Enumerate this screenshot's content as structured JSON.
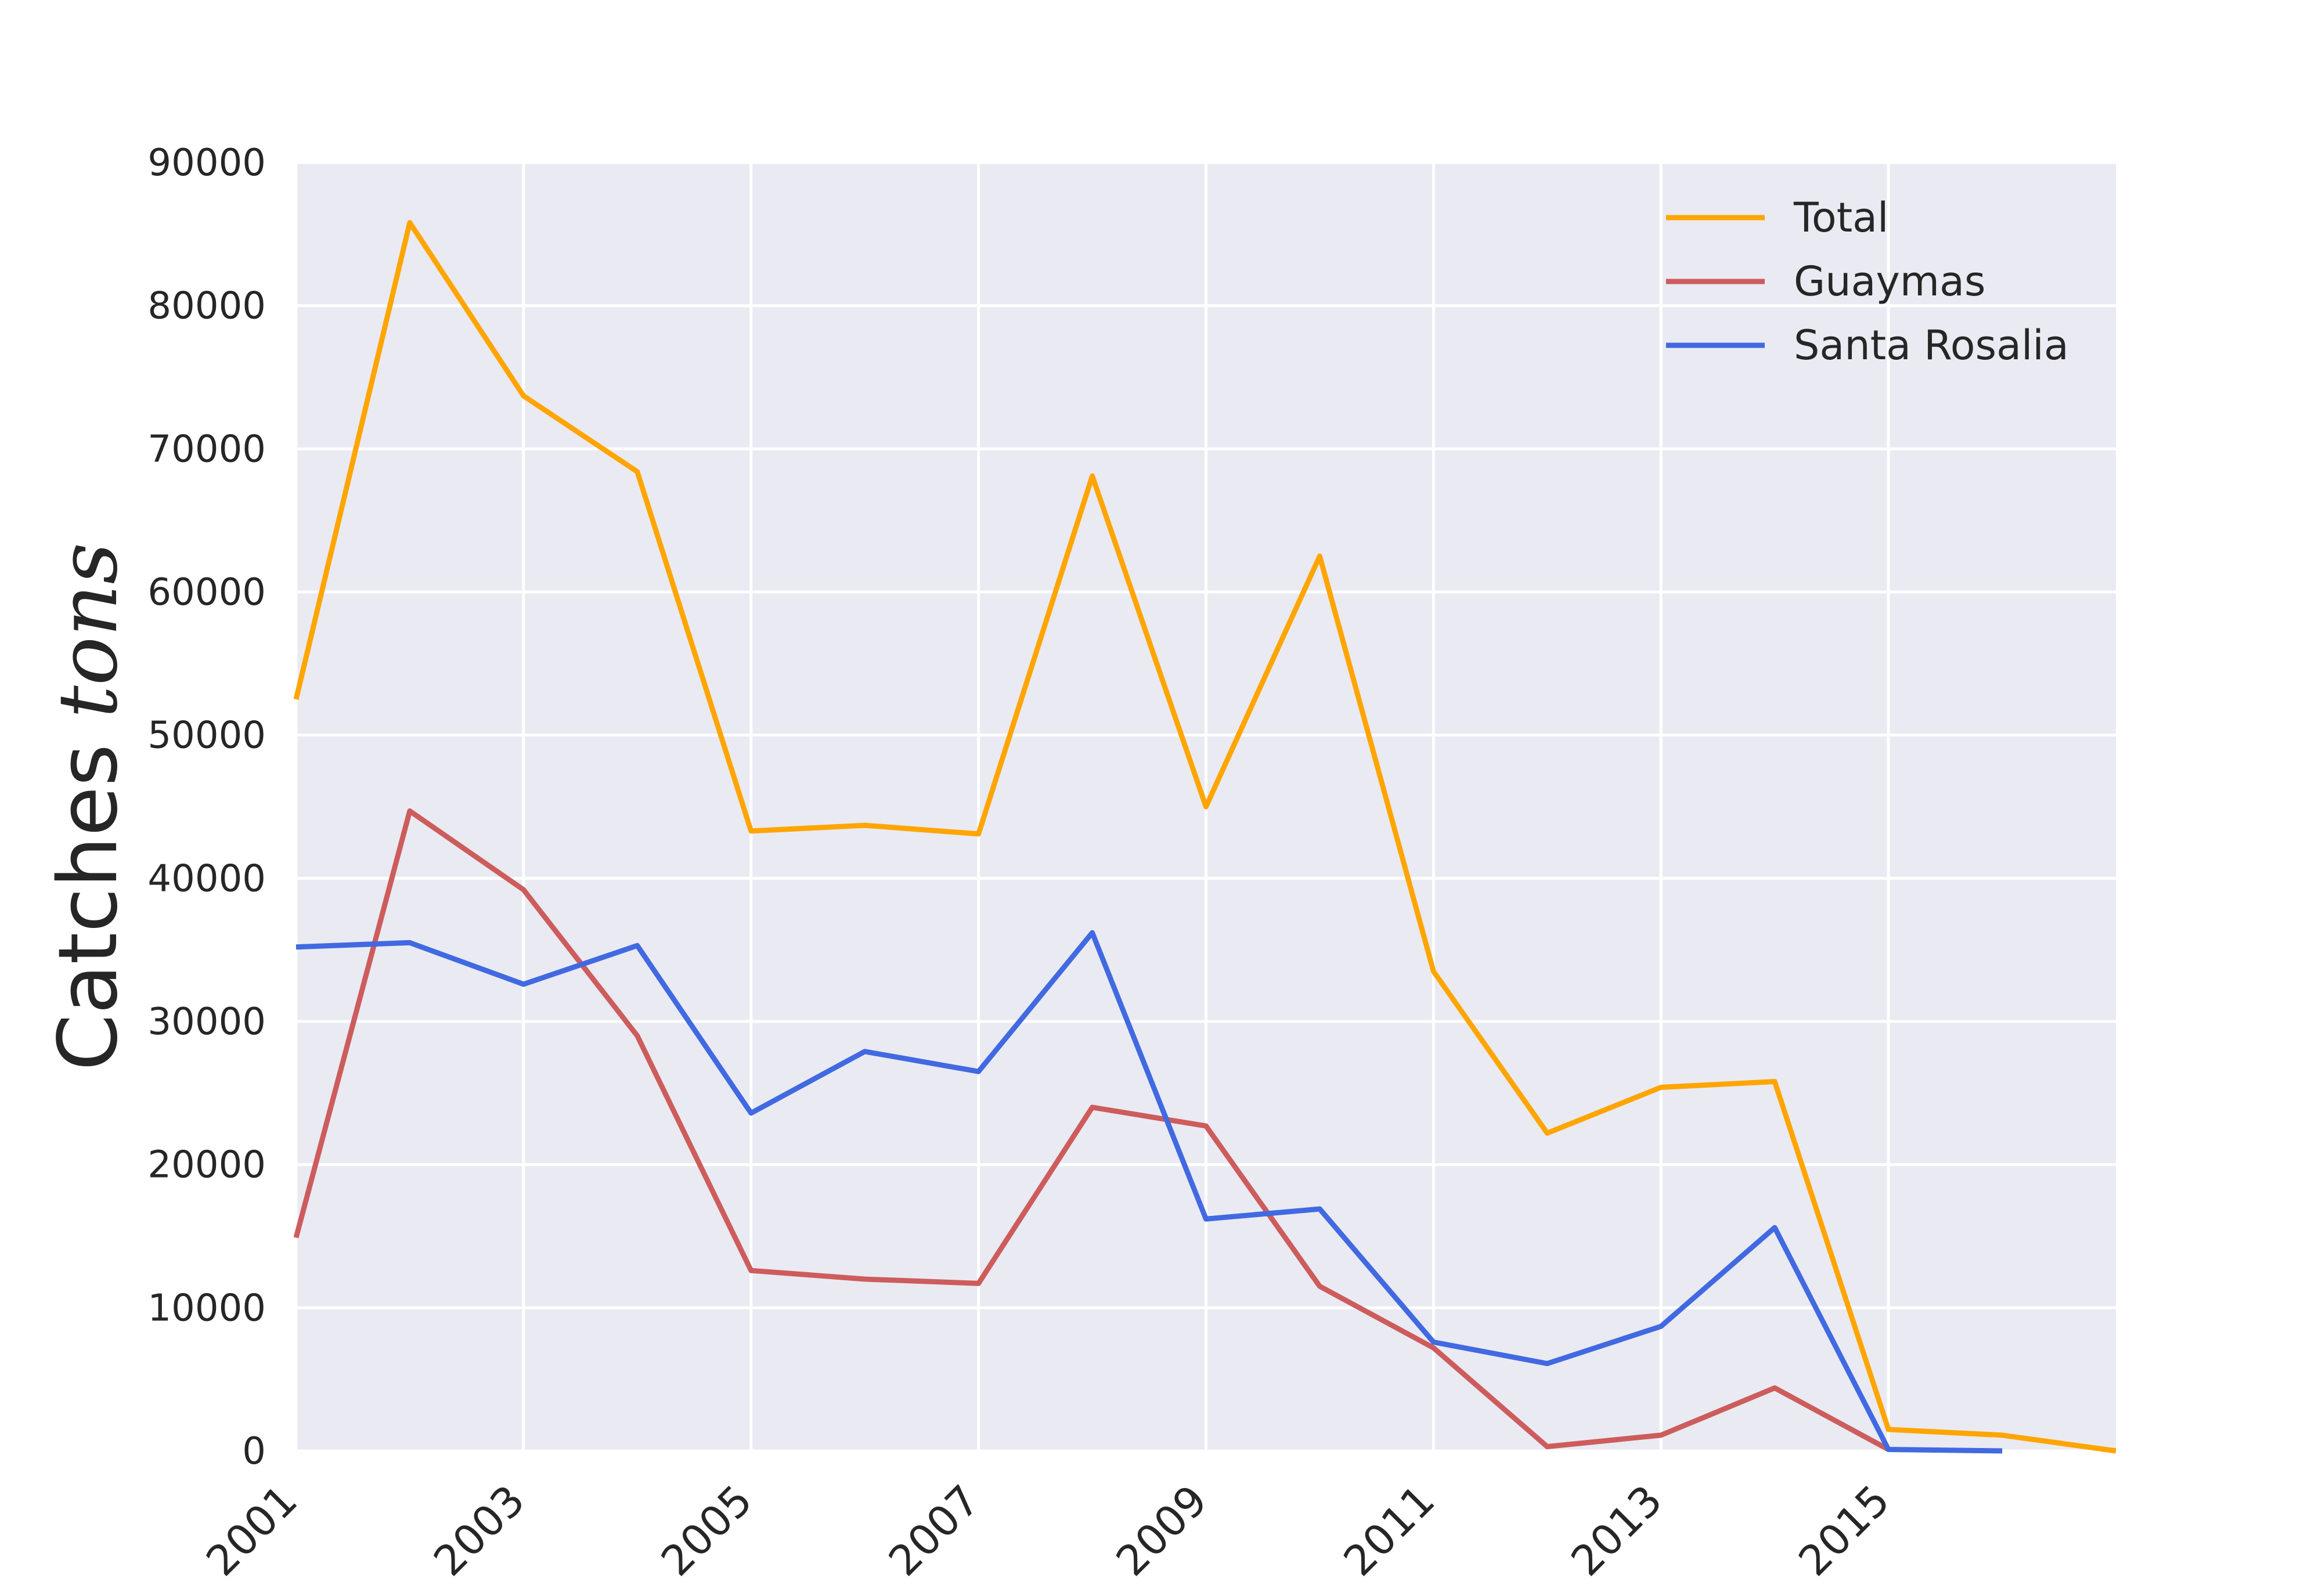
{
  "chart_data": {
    "type": "line",
    "title": "",
    "xlabel": "",
    "ylabel": "Catches ",
    "ylabel_math": "tons",
    "xlim": [
      2001,
      2017
    ],
    "ylim": [
      0,
      90000
    ],
    "xticks": [
      2001,
      2003,
      2005,
      2007,
      2009,
      2011,
      2013,
      2015
    ],
    "yticks": [
      0,
      10000,
      20000,
      30000,
      40000,
      50000,
      60000,
      70000,
      80000,
      90000
    ],
    "grid": true,
    "legend_position": "top-right",
    "x": [
      2001,
      2002,
      2003,
      2004,
      2005,
      2006,
      2007,
      2008,
      2009,
      2010,
      2011,
      2012,
      2013,
      2014,
      2015,
      2016,
      2017
    ],
    "series": [
      {
        "name": "Total",
        "color": "#FFA500",
        "values": [
          52500,
          85800,
          73700,
          68400,
          43300,
          43700,
          43100,
          68100,
          45000,
          62500,
          33500,
          22200,
          25400,
          25800,
          1500,
          1100,
          0
        ]
      },
      {
        "name": "Guaymas",
        "color": "#CD5C5C",
        "values": [
          14900,
          44700,
          39200,
          29000,
          12600,
          12000,
          11700,
          24000,
          22700,
          11500,
          7200,
          300,
          1100,
          4400,
          100,
          null,
          null
        ]
      },
      {
        "name": "Santa Rosalia",
        "color": "#4169E1",
        "values": [
          35200,
          35500,
          32600,
          35300,
          23600,
          27900,
          26500,
          36200,
          16200,
          16900,
          7600,
          6100,
          8700,
          15600,
          100,
          0,
          null
        ]
      }
    ]
  }
}
